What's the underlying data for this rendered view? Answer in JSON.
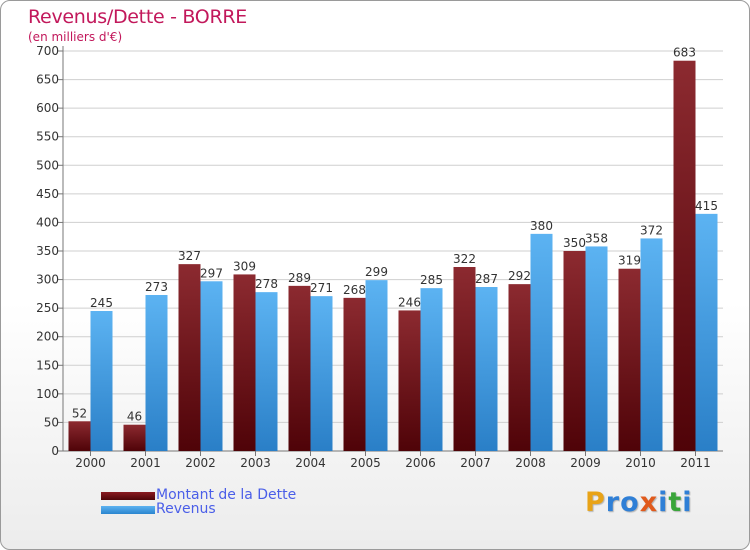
{
  "chart_data": {
    "type": "bar",
    "title": "Revenus/Dette - BORRE",
    "subtitle": "(en milliers d'€)",
    "categories": [
      "2000",
      "2001",
      "2002",
      "2003",
      "2004",
      "2005",
      "2006",
      "2007",
      "2008",
      "2009",
      "2010",
      "2011"
    ],
    "series": [
      {
        "name": "Montant de la Dette",
        "color": "#6b0e14",
        "values": [
          52,
          46,
          327,
          309,
          289,
          268,
          246,
          322,
          292,
          350,
          319,
          683
        ]
      },
      {
        "name": "Revenus",
        "color": "#3f9ee3",
        "values": [
          245,
          273,
          297,
          278,
          271,
          299,
          285,
          287,
          380,
          358,
          372,
          415
        ]
      }
    ],
    "ylim": [
      0,
      700
    ],
    "yticks": [
      0,
      50,
      100,
      150,
      200,
      250,
      300,
      350,
      400,
      450,
      500,
      550,
      600,
      650,
      700
    ],
    "grid": true,
    "legend_position": "bottom-left"
  },
  "logo": {
    "text": "Proxiti",
    "letters": [
      "P",
      "r",
      "o",
      "x",
      "i",
      "t",
      "i"
    ],
    "colors": [
      "#e8a317",
      "#2f7fd6",
      "#2f7fd6",
      "#e05a1c",
      "#2f7fd6",
      "#3aa53a",
      "#2f7fd6"
    ]
  }
}
